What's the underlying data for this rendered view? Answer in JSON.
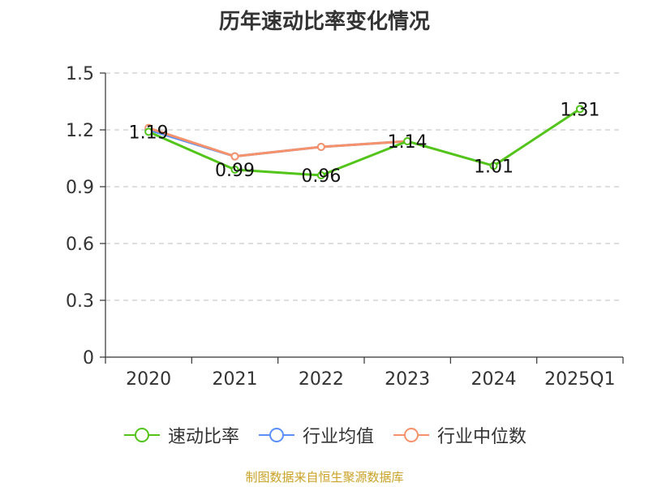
{
  "title": "历年速动比率变化情况",
  "source": "制图数据来自恒生聚源数据库",
  "colors": {
    "series1": "#52c41a",
    "series2": "#5b8ff9",
    "series3": "#f6926b",
    "grid": "#cccccc",
    "axis": "#333333"
  },
  "chart_data": {
    "type": "line",
    "categories": [
      "2020",
      "2021",
      "2022",
      "2023",
      "2024",
      "2025Q1"
    ],
    "ylim": [
      0,
      1.5
    ],
    "yticks": [
      "0",
      "0.3",
      "0.6",
      "0.9",
      "1.2",
      "1.5"
    ],
    "grid": true,
    "legend_position": "bottom",
    "series": [
      {
        "name": "速动比率",
        "values": [
          1.19,
          0.99,
          0.96,
          1.14,
          1.01,
          1.31
        ],
        "labels": [
          "1.19",
          "0.99",
          "0.96",
          "1.14",
          "1.01",
          "1.31"
        ]
      },
      {
        "name": "行业均值",
        "values": [
          1.2,
          1.06,
          1.11,
          1.14,
          null,
          null
        ]
      },
      {
        "name": "行业中位数",
        "values": [
          1.21,
          1.06,
          1.11,
          1.14,
          null,
          null
        ]
      }
    ]
  }
}
